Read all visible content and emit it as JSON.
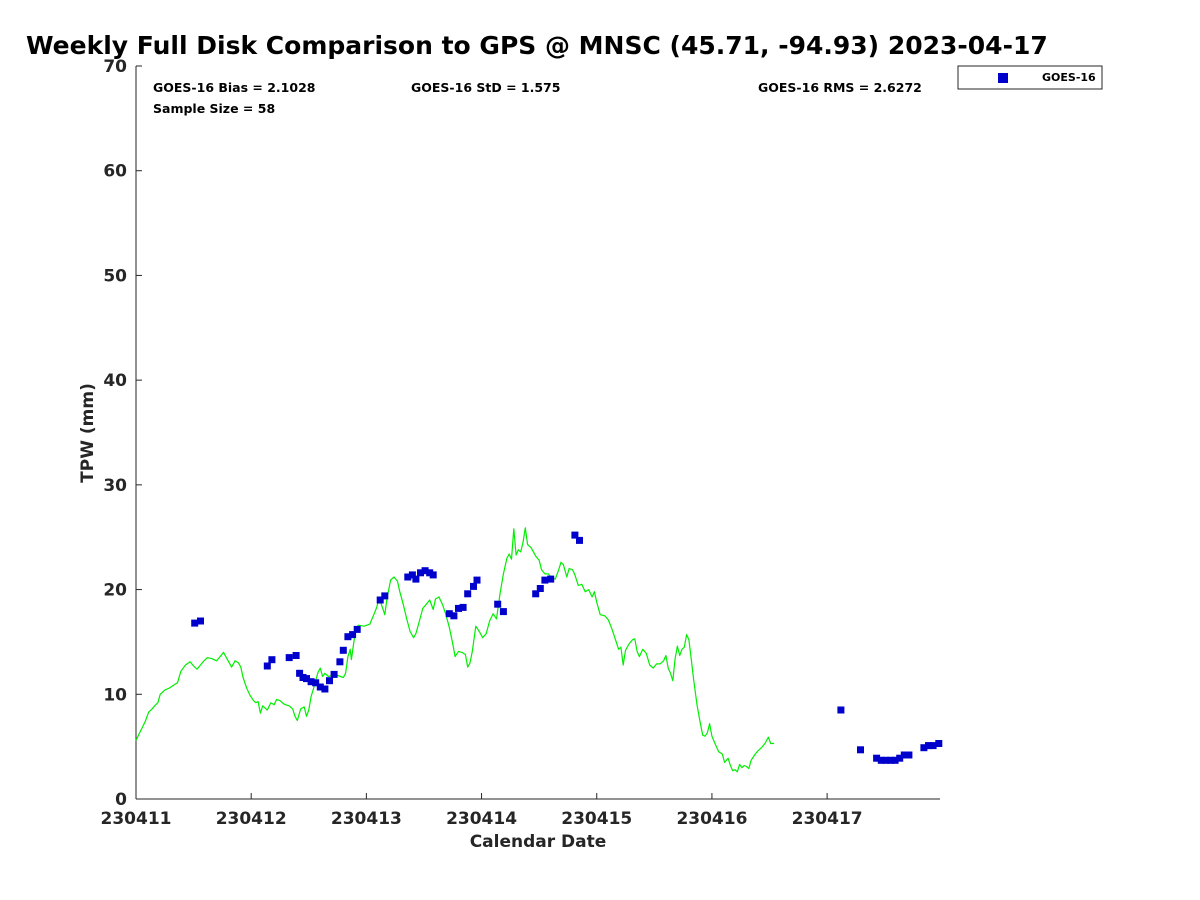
{
  "chart_data": {
    "type": "scatter",
    "title": "Weekly Full Disk Comparison to GPS @ MNSC (45.71, -94.93) 2023-04-17",
    "xlabel": "Calendar Date",
    "ylabel": "TPW (mm)",
    "xlim": [
      0,
      6.98
    ],
    "ylim": [
      0,
      70
    ],
    "x_ticks": [
      0,
      1,
      2,
      3,
      4,
      5,
      6
    ],
    "x_tick_labels": [
      "230411",
      "230412",
      "230413",
      "230414",
      "230415",
      "230416",
      "230417"
    ],
    "y_ticks": [
      0,
      10,
      20,
      30,
      40,
      50,
      60,
      70
    ],
    "y_tick_labels": [
      "0",
      "10",
      "20",
      "30",
      "40",
      "50",
      "60",
      "70"
    ],
    "stats": {
      "bias": "GOES-16 Bias = 2.1028",
      "std": "GOES-16 StD = 1.575",
      "rms": "GOES-16 RMS = 2.6272",
      "sample_size": "Sample Size = 58"
    },
    "legend": {
      "position": "top-right",
      "label": "GOES-16"
    },
    "colors": {
      "goes": "#0000cc",
      "gps": "#00ee00",
      "axis": "#262626"
    },
    "series": [
      {
        "name": "GPS",
        "type": "line",
        "points": [
          [
            0.0,
            5.6
          ],
          [
            0.04,
            6.5
          ],
          [
            0.08,
            7.4
          ],
          [
            0.11,
            8.3
          ],
          [
            0.14,
            8.6
          ],
          [
            0.17,
            9.0
          ],
          [
            0.19,
            9.2
          ],
          [
            0.21,
            10.0
          ],
          [
            0.25,
            10.4
          ],
          [
            0.29,
            10.6
          ],
          [
            0.33,
            10.9
          ],
          [
            0.36,
            11.1
          ],
          [
            0.39,
            12.2
          ],
          [
            0.43,
            12.8
          ],
          [
            0.47,
            13.1
          ],
          [
            0.5,
            12.7
          ],
          [
            0.53,
            12.4
          ],
          [
            0.56,
            12.8
          ],
          [
            0.59,
            13.2
          ],
          [
            0.62,
            13.5
          ],
          [
            0.66,
            13.4
          ],
          [
            0.7,
            13.2
          ],
          [
            0.73,
            13.6
          ],
          [
            0.76,
            14.0
          ],
          [
            0.78,
            13.6
          ],
          [
            0.81,
            13.0
          ],
          [
            0.83,
            12.6
          ],
          [
            0.86,
            13.2
          ],
          [
            0.89,
            13.0
          ],
          [
            0.91,
            12.6
          ],
          [
            0.93,
            11.6
          ],
          [
            0.96,
            10.6
          ],
          [
            0.99,
            9.9
          ],
          [
            1.02,
            9.4
          ],
          [
            1.04,
            9.2
          ],
          [
            1.06,
            9.3
          ],
          [
            1.08,
            8.2
          ],
          [
            1.1,
            8.9
          ],
          [
            1.12,
            8.7
          ],
          [
            1.14,
            8.5
          ],
          [
            1.17,
            9.2
          ],
          [
            1.2,
            9.0
          ],
          [
            1.22,
            9.5
          ],
          [
            1.25,
            9.4
          ],
          [
            1.28,
            9.1
          ],
          [
            1.3,
            9.0
          ],
          [
            1.33,
            8.9
          ],
          [
            1.36,
            8.6
          ],
          [
            1.38,
            7.9
          ],
          [
            1.4,
            7.5
          ],
          [
            1.43,
            8.6
          ],
          [
            1.46,
            8.8
          ],
          [
            1.48,
            7.9
          ],
          [
            1.5,
            8.5
          ],
          [
            1.52,
            9.8
          ],
          [
            1.54,
            10.5
          ],
          [
            1.56,
            11.3
          ],
          [
            1.58,
            12.1
          ],
          [
            1.6,
            12.5
          ],
          [
            1.62,
            11.7
          ],
          [
            1.64,
            12.0
          ],
          [
            1.67,
            11.7
          ],
          [
            1.7,
            11.8
          ],
          [
            1.75,
            11.8
          ],
          [
            1.8,
            11.6
          ],
          [
            1.82,
            12.0
          ],
          [
            1.84,
            13.6
          ],
          [
            1.86,
            14.3
          ],
          [
            1.87,
            13.3
          ],
          [
            1.89,
            14.9
          ],
          [
            1.91,
            16.3
          ],
          [
            1.93,
            16.6
          ],
          [
            1.98,
            16.5
          ],
          [
            2.03,
            16.7
          ],
          [
            2.06,
            17.5
          ],
          [
            2.09,
            18.3
          ],
          [
            2.11,
            19.1
          ],
          [
            2.13,
            18.6
          ],
          [
            2.16,
            17.6
          ],
          [
            2.18,
            19.2
          ],
          [
            2.21,
            20.9
          ],
          [
            2.24,
            21.2
          ],
          [
            2.27,
            20.8
          ],
          [
            2.29,
            19.8
          ],
          [
            2.32,
            18.6
          ],
          [
            2.35,
            17.2
          ],
          [
            2.38,
            16.0
          ],
          [
            2.41,
            15.4
          ],
          [
            2.43,
            15.8
          ],
          [
            2.46,
            17.0
          ],
          [
            2.49,
            18.2
          ],
          [
            2.52,
            18.6
          ],
          [
            2.55,
            19.0
          ],
          [
            2.58,
            18.1
          ],
          [
            2.6,
            19.1
          ],
          [
            2.63,
            19.3
          ],
          [
            2.66,
            18.6
          ],
          [
            2.69,
            17.6
          ],
          [
            2.72,
            16.4
          ],
          [
            2.75,
            14.8
          ],
          [
            2.77,
            13.6
          ],
          [
            2.8,
            14.1
          ],
          [
            2.83,
            14.0
          ],
          [
            2.86,
            13.8
          ],
          [
            2.88,
            12.6
          ],
          [
            2.9,
            13.0
          ],
          [
            2.92,
            14.1
          ],
          [
            2.95,
            16.5
          ],
          [
            2.98,
            16.0
          ],
          [
            3.01,
            15.4
          ],
          [
            3.04,
            15.8
          ],
          [
            3.07,
            17.0
          ],
          [
            3.1,
            17.7
          ],
          [
            3.13,
            17.2
          ],
          [
            3.16,
            19.6
          ],
          [
            3.19,
            21.5
          ],
          [
            3.22,
            23.0
          ],
          [
            3.24,
            23.4
          ],
          [
            3.26,
            22.9
          ],
          [
            3.28,
            25.8
          ],
          [
            3.3,
            23.3
          ],
          [
            3.32,
            23.8
          ],
          [
            3.34,
            23.6
          ],
          [
            3.36,
            24.5
          ],
          [
            3.38,
            25.9
          ],
          [
            3.4,
            24.3
          ],
          [
            3.43,
            24.0
          ],
          [
            3.47,
            23.2
          ],
          [
            3.5,
            22.8
          ],
          [
            3.52,
            21.9
          ],
          [
            3.55,
            21.5
          ],
          [
            3.58,
            21.5
          ],
          [
            3.61,
            21.1
          ],
          [
            3.64,
            21.0
          ],
          [
            3.67,
            21.9
          ],
          [
            3.69,
            22.6
          ],
          [
            3.71,
            22.4
          ],
          [
            3.74,
            21.2
          ],
          [
            3.76,
            22.0
          ],
          [
            3.79,
            21.9
          ],
          [
            3.81,
            21.4
          ],
          [
            3.84,
            20.4
          ],
          [
            3.87,
            20.5
          ],
          [
            3.9,
            19.8
          ],
          [
            3.93,
            20.0
          ],
          [
            3.96,
            19.3
          ],
          [
            3.98,
            19.8
          ],
          [
            4.0,
            18.8
          ],
          [
            4.03,
            17.6
          ],
          [
            4.07,
            17.5
          ],
          [
            4.1,
            17.1
          ],
          [
            4.13,
            16.3
          ],
          [
            4.16,
            15.3
          ],
          [
            4.19,
            14.3
          ],
          [
            4.21,
            14.5
          ],
          [
            4.23,
            12.8
          ],
          [
            4.25,
            14.2
          ],
          [
            4.28,
            14.8
          ],
          [
            4.31,
            15.2
          ],
          [
            4.33,
            15.3
          ],
          [
            4.35,
            14.1
          ],
          [
            4.37,
            13.6
          ],
          [
            4.4,
            14.3
          ],
          [
            4.43,
            13.9
          ],
          [
            4.46,
            12.8
          ],
          [
            4.49,
            12.5
          ],
          [
            4.52,
            12.9
          ],
          [
            4.55,
            12.9
          ],
          [
            4.58,
            13.2
          ],
          [
            4.6,
            13.7
          ],
          [
            4.62,
            12.5
          ],
          [
            4.64,
            12.0
          ],
          [
            4.66,
            11.3
          ],
          [
            4.68,
            13.4
          ],
          [
            4.7,
            14.6
          ],
          [
            4.72,
            13.7
          ],
          [
            4.74,
            14.3
          ],
          [
            4.76,
            14.5
          ],
          [
            4.78,
            15.7
          ],
          [
            4.8,
            15.2
          ],
          [
            4.82,
            13.4
          ],
          [
            4.84,
            11.5
          ],
          [
            4.87,
            9.0
          ],
          [
            4.9,
            7.2
          ],
          [
            4.92,
            6.1
          ],
          [
            4.94,
            6.0
          ],
          [
            4.96,
            6.3
          ],
          [
            4.98,
            7.2
          ],
          [
            5.0,
            6.0
          ],
          [
            5.03,
            5.2
          ],
          [
            5.06,
            4.5
          ],
          [
            5.09,
            4.3
          ],
          [
            5.11,
            3.5
          ],
          [
            5.14,
            3.9
          ],
          [
            5.16,
            3.2
          ],
          [
            5.18,
            2.7
          ],
          [
            5.2,
            2.8
          ],
          [
            5.22,
            2.6
          ],
          [
            5.24,
            3.3
          ],
          [
            5.26,
            3.0
          ],
          [
            5.28,
            3.2
          ],
          [
            5.3,
            3.1
          ],
          [
            5.32,
            2.9
          ],
          [
            5.34,
            3.7
          ],
          [
            5.37,
            4.2
          ],
          [
            5.4,
            4.6
          ],
          [
            5.43,
            4.9
          ],
          [
            5.46,
            5.3
          ],
          [
            5.49,
            5.9
          ],
          [
            5.51,
            5.3
          ],
          [
            5.54,
            5.3
          ]
        ]
      },
      {
        "name": "GOES-16",
        "type": "scatter",
        "points": [
          [
            0.51,
            16.8
          ],
          [
            0.56,
            17.0
          ],
          [
            1.14,
            12.7
          ],
          [
            1.18,
            13.3
          ],
          [
            1.33,
            13.5
          ],
          [
            1.39,
            13.7
          ],
          [
            1.42,
            12.0
          ],
          [
            1.45,
            11.6
          ],
          [
            1.48,
            11.5
          ],
          [
            1.52,
            11.2
          ],
          [
            1.56,
            11.1
          ],
          [
            1.6,
            10.7
          ],
          [
            1.64,
            10.5
          ],
          [
            1.68,
            11.3
          ],
          [
            1.72,
            11.9
          ],
          [
            1.77,
            13.1
          ],
          [
            1.8,
            14.2
          ],
          [
            1.84,
            15.5
          ],
          [
            1.88,
            15.7
          ],
          [
            1.92,
            16.2
          ],
          [
            2.12,
            19.0
          ],
          [
            2.16,
            19.4
          ],
          [
            2.36,
            21.2
          ],
          [
            2.4,
            21.4
          ],
          [
            2.43,
            21.0
          ],
          [
            2.47,
            21.6
          ],
          [
            2.51,
            21.8
          ],
          [
            2.55,
            21.6
          ],
          [
            2.58,
            21.4
          ],
          [
            2.72,
            17.7
          ],
          [
            2.76,
            17.5
          ],
          [
            2.8,
            18.2
          ],
          [
            2.84,
            18.3
          ],
          [
            2.88,
            19.6
          ],
          [
            2.93,
            20.3
          ],
          [
            2.96,
            20.9
          ],
          [
            3.14,
            18.6
          ],
          [
            3.19,
            17.9
          ],
          [
            3.47,
            19.6
          ],
          [
            3.51,
            20.1
          ],
          [
            3.55,
            20.9
          ],
          [
            3.6,
            21.0
          ],
          [
            3.81,
            25.2
          ],
          [
            3.85,
            24.7
          ],
          [
            6.12,
            8.5
          ],
          [
            6.29,
            4.7
          ],
          [
            6.43,
            3.9
          ],
          [
            6.47,
            3.7
          ],
          [
            6.51,
            3.7
          ],
          [
            6.55,
            3.7
          ],
          [
            6.59,
            3.7
          ],
          [
            6.63,
            3.9
          ],
          [
            6.67,
            4.2
          ],
          [
            6.71,
            4.2
          ],
          [
            6.84,
            4.9
          ],
          [
            6.88,
            5.1
          ],
          [
            6.92,
            5.1
          ],
          [
            6.97,
            5.3
          ]
        ]
      }
    ]
  }
}
